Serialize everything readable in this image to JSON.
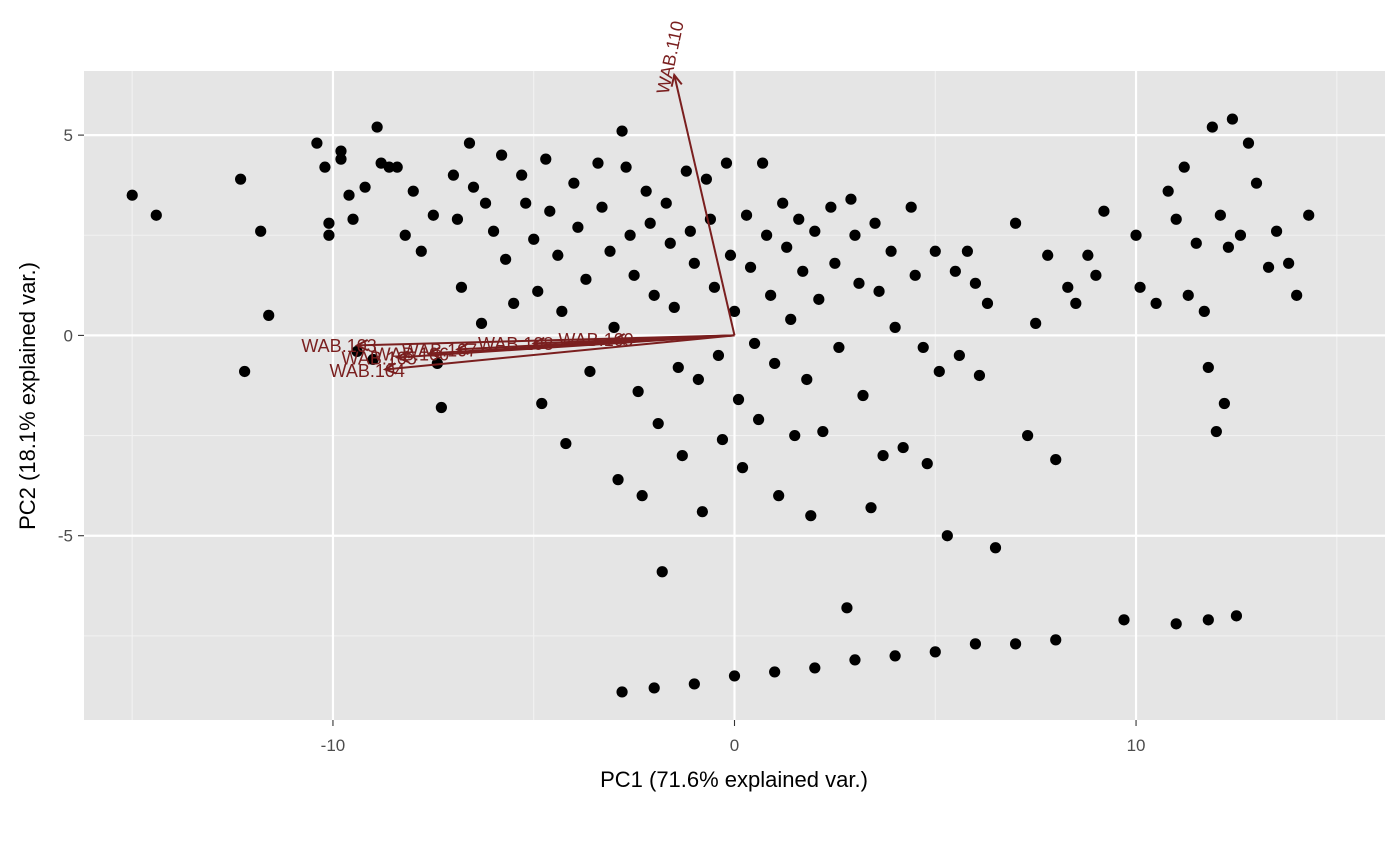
{
  "chart_data": {
    "type": "scatter",
    "title": "",
    "xlabel": "PC1 (71.6% explained var.)",
    "ylabel": "PC2 (18.1% explained var.)",
    "xlim": [
      -16.2,
      16.2
    ],
    "ylim": [
      -9.6,
      6.6
    ],
    "x_ticks": [
      -10,
      0,
      10
    ],
    "x_tick_labels": [
      "-10",
      "0",
      "10"
    ],
    "y_ticks": [
      -5,
      0,
      5
    ],
    "y_tick_labels": [
      "-5",
      "0",
      "5"
    ],
    "grid": true,
    "background": "#e5e5e5",
    "point_color": "#000000",
    "vector_color": "#7a1f1f",
    "loadings": [
      {
        "label": "WAB.103",
        "x": -9.4,
        "y": -0.25
      },
      {
        "label": "WAB.104",
        "x": -8.7,
        "y": -0.85
      },
      {
        "label": "WAB.105",
        "x": -8.4,
        "y": -0.55
      },
      {
        "label": "WAB.106",
        "x": -7.6,
        "y": -0.45
      },
      {
        "label": "WAB.107",
        "x": -6.9,
        "y": -0.35
      },
      {
        "label": "WAB.108",
        "x": -5.0,
        "y": -0.2
      },
      {
        "label": "WAB.109",
        "x": -3.0,
        "y": -0.1
      },
      {
        "label": "WAB.110",
        "x": -1.5,
        "y": 6.5
      }
    ],
    "points": [
      [
        -15.0,
        3.5
      ],
      [
        -14.4,
        3.0
      ],
      [
        -12.3,
        3.9
      ],
      [
        -12.2,
        -0.9
      ],
      [
        -11.8,
        2.6
      ],
      [
        -11.6,
        0.5
      ],
      [
        -10.4,
        4.8
      ],
      [
        -10.2,
        4.2
      ],
      [
        -10.1,
        2.8
      ],
      [
        -10.1,
        2.5
      ],
      [
        -9.8,
        4.6
      ],
      [
        -9.8,
        4.4
      ],
      [
        -9.6,
        3.5
      ],
      [
        -9.5,
        2.9
      ],
      [
        -9.4,
        -0.4
      ],
      [
        -9.2,
        3.7
      ],
      [
        -9.0,
        -0.6
      ],
      [
        -8.9,
        5.2
      ],
      [
        -8.8,
        4.3
      ],
      [
        -8.6,
        4.2
      ],
      [
        -8.4,
        4.2
      ],
      [
        -8.2,
        2.5
      ],
      [
        -8.0,
        3.6
      ],
      [
        -7.8,
        2.1
      ],
      [
        -7.5,
        3.0
      ],
      [
        -7.4,
        -0.7
      ],
      [
        -7.3,
        -1.8
      ],
      [
        -7.0,
        4.0
      ],
      [
        -6.9,
        2.9
      ],
      [
        -6.8,
        1.2
      ],
      [
        -6.6,
        4.8
      ],
      [
        -6.5,
        3.7
      ],
      [
        -6.3,
        0.3
      ],
      [
        -6.2,
        3.3
      ],
      [
        -6.0,
        2.6
      ],
      [
        -5.8,
        4.5
      ],
      [
        -5.7,
        1.9
      ],
      [
        -5.5,
        0.8
      ],
      [
        -5.3,
        4.0
      ],
      [
        -5.2,
        3.3
      ],
      [
        -5.0,
        2.4
      ],
      [
        -4.9,
        1.1
      ],
      [
        -4.8,
        -1.7
      ],
      [
        -4.7,
        4.4
      ],
      [
        -4.6,
        3.1
      ],
      [
        -4.4,
        2.0
      ],
      [
        -4.3,
        0.6
      ],
      [
        -4.2,
        -2.7
      ],
      [
        -4.0,
        3.8
      ],
      [
        -3.9,
        2.7
      ],
      [
        -3.7,
        1.4
      ],
      [
        -3.6,
        -0.9
      ],
      [
        -3.4,
        4.3
      ],
      [
        -3.3,
        3.2
      ],
      [
        -3.1,
        2.1
      ],
      [
        -3.0,
        0.2
      ],
      [
        -2.9,
        -3.6
      ],
      [
        -2.8,
        5.1
      ],
      [
        -2.7,
        4.2
      ],
      [
        -2.6,
        2.5
      ],
      [
        -2.5,
        1.5
      ],
      [
        -2.4,
        -1.4
      ],
      [
        -2.3,
        -4.0
      ],
      [
        -2.2,
        3.6
      ],
      [
        -2.1,
        2.8
      ],
      [
        -2.0,
        1.0
      ],
      [
        -1.9,
        -2.2
      ],
      [
        -1.8,
        -5.9
      ],
      [
        -1.7,
        3.3
      ],
      [
        -1.6,
        2.3
      ],
      [
        -1.5,
        0.7
      ],
      [
        -1.4,
        -0.8
      ],
      [
        -1.3,
        -3.0
      ],
      [
        -1.2,
        4.1
      ],
      [
        -1.1,
        2.6
      ],
      [
        -1.0,
        1.8
      ],
      [
        -0.9,
        -1.1
      ],
      [
        -0.8,
        -4.4
      ],
      [
        -0.7,
        3.9
      ],
      [
        -0.6,
        2.9
      ],
      [
        -0.5,
        1.2
      ],
      [
        -0.4,
        -0.5
      ],
      [
        -0.3,
        -2.6
      ],
      [
        -0.2,
        4.3
      ],
      [
        -0.1,
        2.0
      ],
      [
        0.0,
        0.6
      ],
      [
        0.1,
        -1.6
      ],
      [
        0.2,
        -3.3
      ],
      [
        0.3,
        3.0
      ],
      [
        0.4,
        1.7
      ],
      [
        0.5,
        -0.2
      ],
      [
        0.6,
        -2.1
      ],
      [
        0.7,
        4.3
      ],
      [
        0.8,
        2.5
      ],
      [
        0.9,
        1.0
      ],
      [
        1.0,
        -0.7
      ],
      [
        1.1,
        -4.0
      ],
      [
        1.2,
        3.3
      ],
      [
        1.3,
        2.2
      ],
      [
        1.4,
        0.4
      ],
      [
        1.5,
        -2.5
      ],
      [
        1.6,
        2.9
      ],
      [
        1.7,
        1.6
      ],
      [
        1.8,
        -1.1
      ],
      [
        1.9,
        -4.5
      ],
      [
        2.0,
        2.6
      ],
      [
        2.1,
        0.9
      ],
      [
        2.2,
        -2.4
      ],
      [
        2.4,
        3.2
      ],
      [
        2.5,
        1.8
      ],
      [
        2.6,
        -0.3
      ],
      [
        2.8,
        -6.8
      ],
      [
        2.9,
        3.4
      ],
      [
        3.0,
        2.5
      ],
      [
        3.1,
        1.3
      ],
      [
        3.2,
        -1.5
      ],
      [
        3.4,
        -4.3
      ],
      [
        3.5,
        2.8
      ],
      [
        3.6,
        1.1
      ],
      [
        3.7,
        -3.0
      ],
      [
        3.9,
        2.1
      ],
      [
        4.0,
        0.2
      ],
      [
        4.2,
        -2.8
      ],
      [
        4.4,
        3.2
      ],
      [
        4.5,
        1.5
      ],
      [
        4.7,
        -0.3
      ],
      [
        4.8,
        -3.2
      ],
      [
        5.0,
        2.1
      ],
      [
        5.1,
        -0.9
      ],
      [
        5.3,
        -5.0
      ],
      [
        5.5,
        1.6
      ],
      [
        5.6,
        -0.5
      ],
      [
        5.8,
        2.1
      ],
      [
        6.0,
        1.3
      ],
      [
        6.1,
        -1.0
      ],
      [
        6.3,
        0.8
      ],
      [
        6.5,
        -5.3
      ],
      [
        7.0,
        2.8
      ],
      [
        7.3,
        -2.5
      ],
      [
        7.5,
        0.3
      ],
      [
        7.8,
        2.0
      ],
      [
        8.0,
        -3.1
      ],
      [
        8.3,
        1.2
      ],
      [
        8.5,
        0.8
      ],
      [
        8.8,
        2.0
      ],
      [
        9.0,
        1.5
      ],
      [
        9.2,
        3.1
      ],
      [
        9.7,
        -7.1
      ],
      [
        10.0,
        2.5
      ],
      [
        10.1,
        1.2
      ],
      [
        10.5,
        0.8
      ],
      [
        10.8,
        3.6
      ],
      [
        11.0,
        2.9
      ],
      [
        11.2,
        4.2
      ],
      [
        11.3,
        1.0
      ],
      [
        11.5,
        2.3
      ],
      [
        11.7,
        0.6
      ],
      [
        11.8,
        -0.8
      ],
      [
        11.9,
        5.2
      ],
      [
        12.0,
        -2.4
      ],
      [
        12.1,
        3.0
      ],
      [
        12.2,
        -1.7
      ],
      [
        12.3,
        2.2
      ],
      [
        12.4,
        5.4
      ],
      [
        12.6,
        2.5
      ],
      [
        12.8,
        4.8
      ],
      [
        13.0,
        3.8
      ],
      [
        13.3,
        1.7
      ],
      [
        13.5,
        2.6
      ],
      [
        13.8,
        1.8
      ],
      [
        14.0,
        1.0
      ],
      [
        14.3,
        3.0
      ],
      [
        -2.8,
        -8.9
      ],
      [
        -2.0,
        -8.8
      ],
      [
        -1.0,
        -8.7
      ],
      [
        0.0,
        -8.5
      ],
      [
        1.0,
        -8.4
      ],
      [
        2.0,
        -8.3
      ],
      [
        3.0,
        -8.1
      ],
      [
        4.0,
        -8.0
      ],
      [
        5.0,
        -7.9
      ],
      [
        6.0,
        -7.7
      ],
      [
        7.0,
        -7.7
      ],
      [
        8.0,
        -7.6
      ],
      [
        11.0,
        -7.2
      ],
      [
        11.8,
        -7.1
      ],
      [
        12.5,
        -7.0
      ]
    ]
  }
}
